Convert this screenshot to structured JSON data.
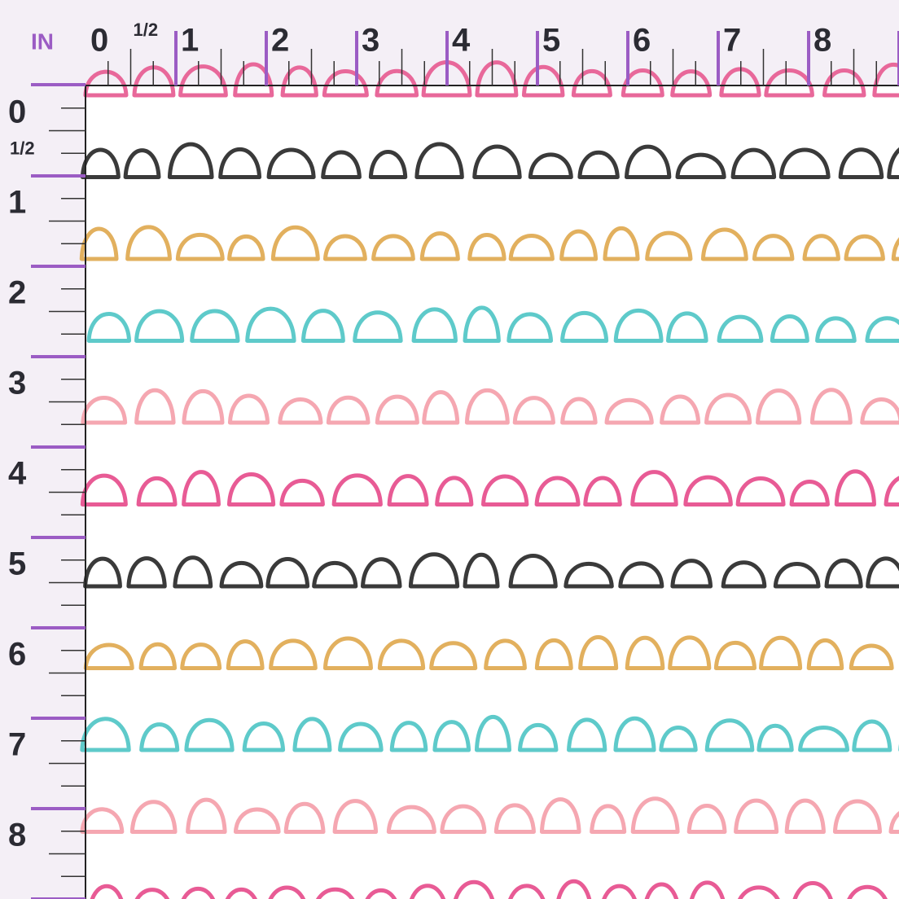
{
  "ruler": {
    "unit": "IN",
    "top": [
      "0",
      "1/2",
      "1",
      "2",
      "3",
      "4",
      "5",
      "6",
      "7",
      "8"
    ],
    "left": [
      "0",
      "1/2",
      "1",
      "2",
      "3",
      "4",
      "5",
      "6",
      "7",
      "8"
    ]
  }
}
